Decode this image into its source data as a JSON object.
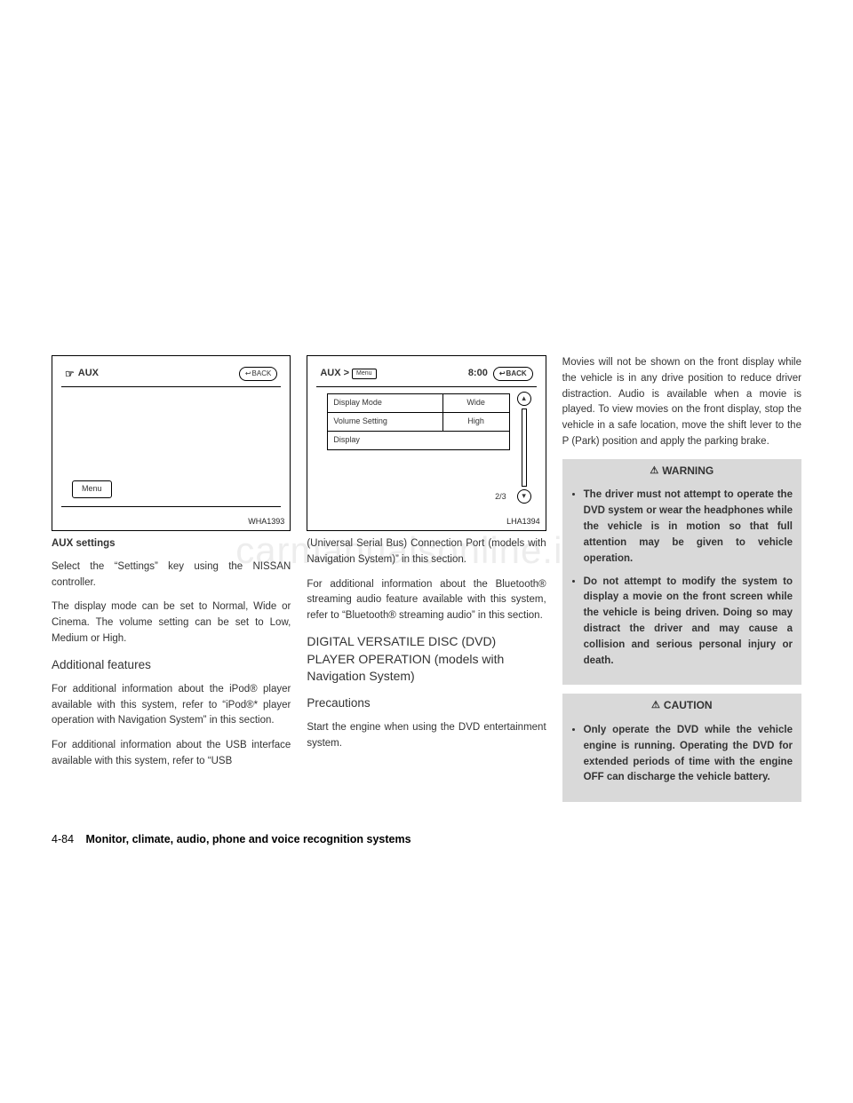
{
  "watermark": "carmanualsonline.info",
  "footer": {
    "page": "4-84",
    "section": "Monitor, climate, audio, phone and voice recognition systems"
  },
  "col1": {
    "fig": {
      "aux_label": "AUX",
      "back_label": "BACK",
      "menu_btn": "Menu",
      "caption": "WHA1393"
    },
    "h1": "AUX settings",
    "p1": "Select the “Settings” key using the NISSAN controller.",
    "p2": "The display mode can be set to Normal, Wide or Cinema. The volume setting can be set to Low, Medium or High.",
    "h2": "Additional features",
    "p3": "For additional information about the iPod® player available with this system, refer to “iPod®* player operation with Navigation System” in this section.",
    "p4": "For additional information about the USB interface available with this system, refer to “USB"
  },
  "col2": {
    "fig": {
      "title": "AUX >",
      "menu_tag": "Menu",
      "time": "8:00",
      "back_label": "BACK",
      "row1l": "Display Mode",
      "row1r": "Wide",
      "row2l": "Volume Setting",
      "row2r": "High",
      "row3l": "Display",
      "page": "2/3",
      "caption": "LHA1394"
    },
    "p1": "(Universal Serial Bus) Connection Port (models with Navigation System)” in this section.",
    "p2": "For additional information about the Bluetooth® streaming audio feature available with this system, refer to “Bluetooth® streaming audio” in this section.",
    "h1": "DIGITAL VERSATILE DISC (DVD) PLAYER OPERATION (models with Navigation System)",
    "h2": "Precautions",
    "p3": "Start the engine when using the DVD entertainment system."
  },
  "col3": {
    "p1": "Movies will not be shown on the front display while the vehicle is in any drive position to reduce driver distraction. Audio is available when a movie is played. To view movies on the front display, stop the vehicle in a safe location, move the shift lever to the P (Park) position and apply the parking brake.",
    "warning": {
      "title": "WARNING",
      "items": [
        "The driver must not attempt to operate the DVD system or wear the headphones while the vehicle is in motion so that full attention may be given to vehicle operation.",
        "Do not attempt to modify the system to display a movie on the front screen while the vehicle is being driven. Doing so may distract the driver and may cause a collision and serious personal injury or death."
      ]
    },
    "caution": {
      "title": "CAUTION",
      "items": [
        "Only operate the DVD while the vehicle engine is running. Operating the DVD for extended periods of time with the engine OFF can discharge the vehicle battery."
      ]
    }
  }
}
